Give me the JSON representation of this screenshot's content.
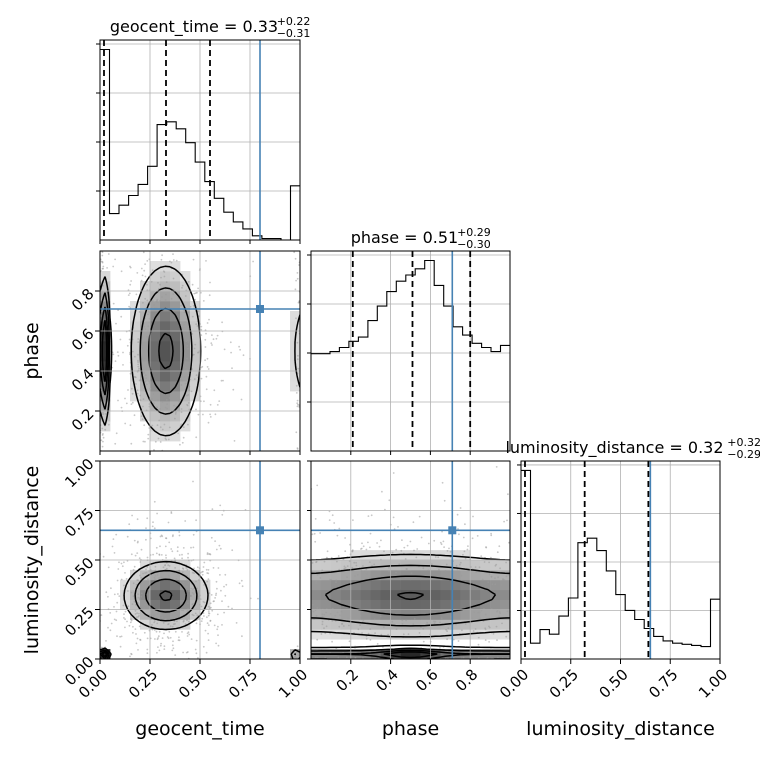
{
  "chart_data": {
    "type": "corner",
    "parameters": [
      "geocent_time",
      "phase",
      "luminosity_distance"
    ],
    "axis_labels": {
      "geocent_time": "geocent_time",
      "phase": "phase",
      "luminosity_distance": "luminosity_distance"
    },
    "ranges": {
      "geocent_time": [
        0,
        1
      ],
      "phase": [
        0,
        1
      ],
      "luminosity_distance": [
        0,
        1
      ]
    },
    "ticks": {
      "geocent_time": [
        0.0,
        0.25,
        0.5,
        0.75,
        1.0
      ],
      "phase": [
        0.2,
        0.4,
        0.6,
        0.8
      ],
      "luminosity_distance": [
        0.0,
        0.25,
        0.5,
        0.75,
        1.0
      ]
    },
    "tick_labels": {
      "geocent_time": [
        "0.00",
        "0.25",
        "0.50",
        "0.75",
        "1.00"
      ],
      "phase": [
        "0.2",
        "0.4",
        "0.6",
        "0.8"
      ],
      "luminosity_distance": [
        "0.00",
        "0.25",
        "0.50",
        "0.75",
        "1.00"
      ]
    },
    "titles": {
      "geocent_time": {
        "prefix": "geocent_time = 0.33",
        "plus": "+0.22",
        "minus": "−0.31"
      },
      "phase": {
        "prefix": "phase = 0.51",
        "plus": "+0.29",
        "minus": "−0.30"
      },
      "luminosity_distance": {
        "prefix": "luminosity_distance = 0.32",
        "plus": "+0.32",
        "minus": "−0.29"
      }
    },
    "truths": {
      "geocent_time": 0.8,
      "phase": 0.71,
      "luminosity_distance": 0.65
    },
    "quantiles": {
      "geocent_time": [
        0.02,
        0.33,
        0.55
      ],
      "phase": [
        0.21,
        0.51,
        0.8
      ],
      "luminosity_distance": [
        0.02,
        0.32,
        0.64
      ]
    },
    "histograms": {
      "geocent_time": [
        1.37,
        0.19,
        0.25,
        0.32,
        0.4,
        0.53,
        0.83,
        0.85,
        0.8,
        0.7,
        0.56,
        0.42,
        0.3,
        0.2,
        0.13,
        0.08,
        0.03,
        0.01,
        0.01,
        0.0,
        0.39
      ],
      "phase": [
        0.47,
        0.47,
        0.48,
        0.5,
        0.53,
        0.55,
        0.63,
        0.7,
        0.77,
        0.82,
        0.85,
        0.88,
        0.92,
        0.8,
        0.7,
        0.6,
        0.56,
        0.52,
        0.5,
        0.48,
        0.51
      ],
      "luminosity_distance": [
        1.67,
        0.14,
        0.26,
        0.22,
        0.38,
        0.54,
        1.03,
        1.07,
        0.96,
        0.78,
        0.57,
        0.43,
        0.35,
        0.27,
        0.2,
        0.16,
        0.14,
        0.13,
        0.12,
        0.11,
        0.53
      ]
    },
    "histogram_bins": 21,
    "grid": true,
    "color_truth": "#4682b4",
    "color_lines": "#000000",
    "color_points": "#9a9a9a"
  }
}
